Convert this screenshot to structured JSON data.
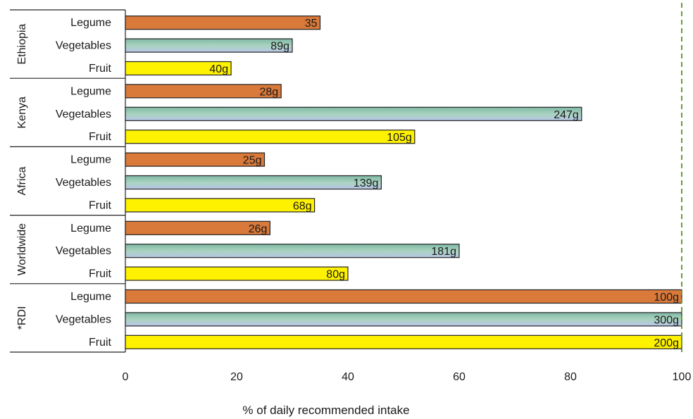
{
  "chart_data": {
    "type": "bar",
    "orientation": "horizontal",
    "xlabel": "% of daily recommended intake",
    "xlim": [
      0,
      100
    ],
    "xticks": [
      "0",
      "20",
      "40",
      "60",
      "80",
      "100"
    ],
    "reference_line": {
      "x": 100,
      "style": "dashed",
      "color": "#6a9a3a"
    },
    "colors": {
      "Legume": "#d9793a",
      "Vegetables": "#8fc0a8",
      "Fruit": "#fff200"
    },
    "groups": [
      {
        "name": "Ethiopia",
        "bars": [
          {
            "category": "Legume",
            "value": 35,
            "label": "35"
          },
          {
            "category": "Vegetables",
            "value": 30,
            "label": "89g"
          },
          {
            "category": "Fruit",
            "value": 19,
            "label": "40g"
          }
        ]
      },
      {
        "name": "Kenya",
        "bars": [
          {
            "category": "Legume",
            "value": 28,
            "label": "28g"
          },
          {
            "category": "Vegetables",
            "value": 82,
            "label": "247g"
          },
          {
            "category": "Fruit",
            "value": 52,
            "label": "105g"
          }
        ]
      },
      {
        "name": "Africa",
        "bars": [
          {
            "category": "Legume",
            "value": 25,
            "label": "25g"
          },
          {
            "category": "Vegetables",
            "value": 46,
            "label": "139g"
          },
          {
            "category": "Fruit",
            "value": 34,
            "label": "68g"
          }
        ]
      },
      {
        "name": "Worldwide",
        "bars": [
          {
            "category": "Legume",
            "value": 26,
            "label": "26g"
          },
          {
            "category": "Vegetables",
            "value": 60,
            "label": "181g"
          },
          {
            "category": "Fruit",
            "value": 40,
            "label": "80g"
          }
        ]
      },
      {
        "name": "*RDI",
        "bars": [
          {
            "category": "Legume",
            "value": 100,
            "label": "100g"
          },
          {
            "category": "Vegetables",
            "value": 100,
            "label": "300g"
          },
          {
            "category": "Fruit",
            "value": 100,
            "label": "200g"
          }
        ]
      }
    ]
  }
}
